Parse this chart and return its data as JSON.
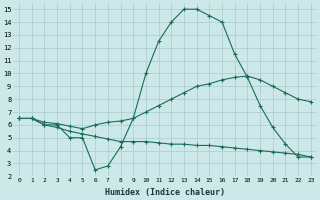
{
  "title": "",
  "xlabel": "Humidex (Indice chaleur)",
  "background_color": "#cce8e8",
  "grid_color": "#aacccc",
  "line_color": "#1a6b5a",
  "xlim": [
    -0.5,
    23.5
  ],
  "ylim": [
    2,
    15.5
  ],
  "xticks": [
    0,
    1,
    2,
    3,
    4,
    5,
    6,
    7,
    8,
    9,
    10,
    11,
    12,
    13,
    14,
    15,
    16,
    17,
    18,
    19,
    20,
    21,
    22,
    23
  ],
  "yticks": [
    2,
    3,
    4,
    5,
    6,
    7,
    8,
    9,
    10,
    11,
    12,
    13,
    14,
    15
  ],
  "series": [
    [
      6.5,
      6.5,
      6.0,
      6.0,
      5.0,
      5.0,
      2.5,
      2.8,
      4.3,
      6.5,
      10.0,
      12.5,
      14.0,
      15.0,
      15.0,
      14.5,
      14.0,
      11.5,
      9.7,
      7.5,
      5.8,
      4.5,
      3.5,
      3.5
    ],
    [
      6.5,
      6.5,
      6.2,
      6.1,
      5.9,
      5.7,
      6.0,
      6.2,
      6.3,
      6.5,
      7.0,
      7.5,
      8.0,
      8.5,
      9.0,
      9.2,
      9.5,
      9.7,
      9.8,
      9.5,
      9.0,
      8.5,
      8.0,
      7.8
    ],
    [
      6.5,
      6.5,
      6.0,
      5.8,
      5.5,
      5.3,
      5.1,
      4.9,
      4.7,
      4.7,
      4.7,
      4.6,
      4.5,
      4.5,
      4.4,
      4.4,
      4.3,
      4.2,
      4.1,
      4.0,
      3.9,
      3.8,
      3.7,
      3.5
    ]
  ]
}
